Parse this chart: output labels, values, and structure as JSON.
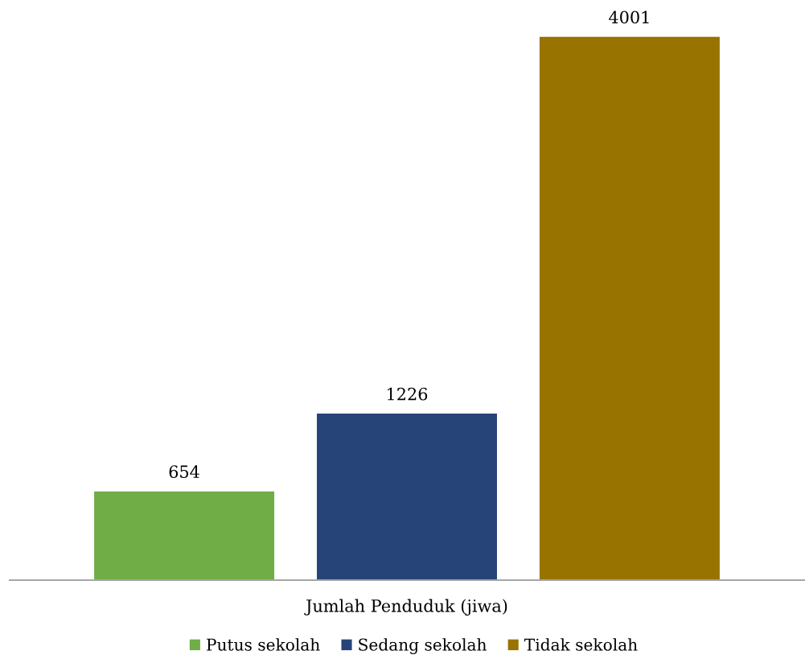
{
  "chart_data": {
    "type": "bar",
    "xlabel": "Jumlah Penduduk (jiwa)",
    "categories": [
      null
    ],
    "series": [
      {
        "name": "Putus sekolah",
        "color": "#70ad47",
        "values": [
          654
        ]
      },
      {
        "name": "Sedang sekolah",
        "color": "#264478",
        "values": [
          1226
        ]
      },
      {
        "name": "Tidak sekolah",
        "color": "#997300",
        "values": [
          4001
        ]
      }
    ],
    "data_labels": true,
    "legend": "bottom",
    "tick_labels": "x"
  }
}
